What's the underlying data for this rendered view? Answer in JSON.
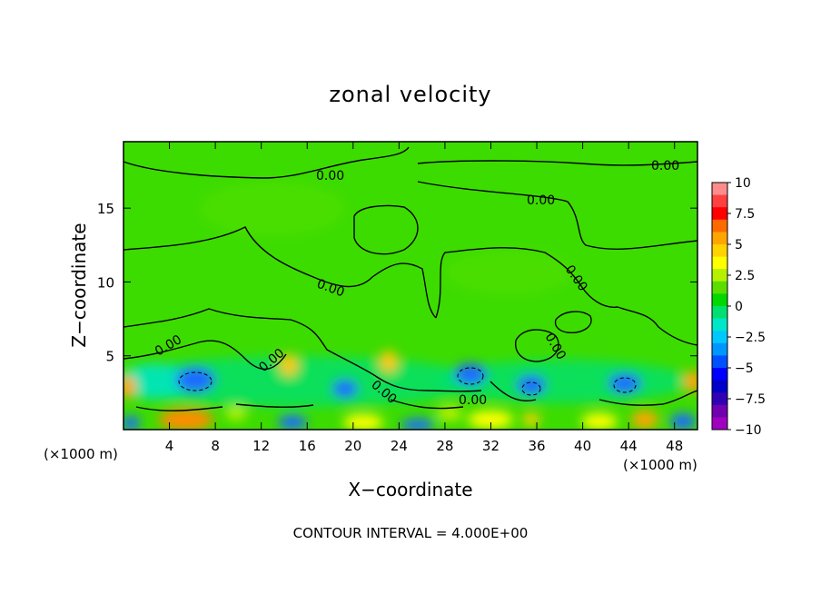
{
  "chart_data": {
    "type": "heatmap",
    "title": "zonal velocity",
    "xlabel": "X−coordinate",
    "ylabel": "Z−coordinate",
    "x_unit_left": "(×1000 m)",
    "x_unit_right": "(×1000 m)",
    "footer": "CONTOUR INTERVAL = 4.000E+00",
    "xlim": [
      0,
      50
    ],
    "ylim": [
      0,
      19.5
    ],
    "x_ticks": [
      "4",
      "8",
      "12",
      "16",
      "20",
      "24",
      "28",
      "32",
      "36",
      "40",
      "44",
      "48"
    ],
    "y_ticks": [
      "5",
      "10",
      "15"
    ],
    "contour_labels": [
      "0.00",
      "0.00",
      "0.00",
      "0.00",
      "0.00",
      "0.00",
      "0.00",
      "0.00",
      "0.00",
      "0.00"
    ],
    "colorbar": {
      "range": [
        -10,
        10
      ],
      "tick_labels": [
        "10",
        "7.5",
        "5",
        "2.5",
        "0",
        "−2.5",
        "−5",
        "−7.5",
        "−10"
      ],
      "colors": [
        "#ff8c8c",
        "#ff4040",
        "#ff0000",
        "#ff6a00",
        "#ffa500",
        "#ffd200",
        "#ffff00",
        "#b4f000",
        "#5ade00",
        "#00d800",
        "#00e070",
        "#00e6c8",
        "#00c8ff",
        "#0096ff",
        "#0050ff",
        "#0000ff",
        "#0000c8",
        "#3000b4",
        "#7000b0",
        "#a000c0"
      ]
    }
  }
}
